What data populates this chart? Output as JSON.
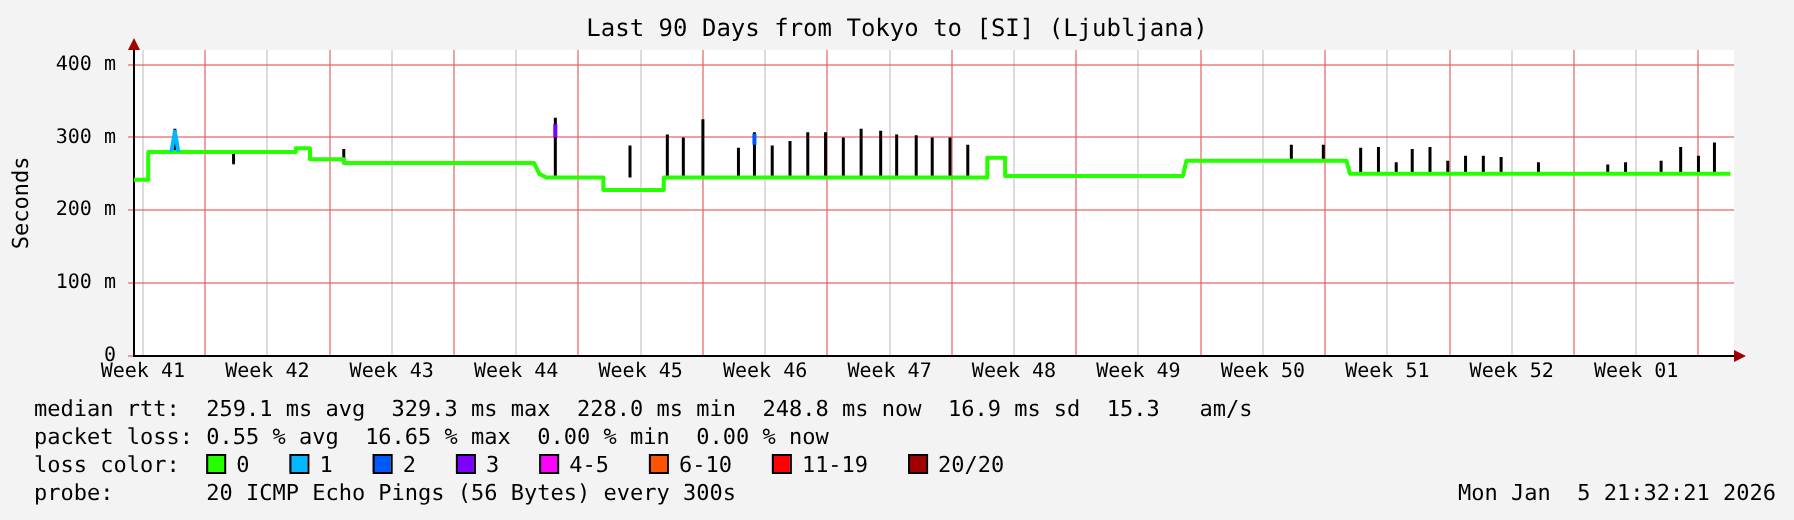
{
  "chart_data": {
    "type": "line",
    "title": "Last 90 Days from Tokyo to [SI] (Ljubljana)",
    "ylabel": "Seconds",
    "legend_title": "loss color:",
    "legend": "bottom",
    "grid": true,
    "xlim": [
      "2025-10-09",
      "2026-01-07"
    ],
    "xticks": [
      {
        "value": "2025-10-09T12:00",
        "label": "Week 41"
      },
      {
        "value": "2025-10-13",
        "label": null
      },
      {
        "value": "2025-10-16T12:00",
        "label": "Week 42"
      },
      {
        "value": "2025-10-20",
        "label": null
      },
      {
        "value": "2025-10-23T12:00",
        "label": "Week 43"
      },
      {
        "value": "2025-10-27",
        "label": null
      },
      {
        "value": "2025-10-30T12:00",
        "label": "Week 44"
      },
      {
        "value": "2025-11-03",
        "label": null
      },
      {
        "value": "2025-11-06T12:00",
        "label": "Week 45"
      },
      {
        "value": "2025-11-10",
        "label": null
      },
      {
        "value": "2025-11-13T12:00",
        "label": "Week 46"
      },
      {
        "value": "2025-11-17",
        "label": null
      },
      {
        "value": "2025-11-20T12:00",
        "label": "Week 47"
      },
      {
        "value": "2025-11-24",
        "label": null
      },
      {
        "value": "2025-11-27T12:00",
        "label": "Week 48"
      },
      {
        "value": "2025-12-01",
        "label": null
      },
      {
        "value": "2025-12-04T12:00",
        "label": "Week 49"
      },
      {
        "value": "2025-12-08",
        "label": null
      },
      {
        "value": "2025-12-11T12:00",
        "label": "Week 50"
      },
      {
        "value": "2025-12-15",
        "label": null
      },
      {
        "value": "2025-12-18T12:00",
        "label": "Week 51"
      },
      {
        "value": "2025-12-22",
        "label": null
      },
      {
        "value": "2025-12-25T12:00",
        "label": "Week 52"
      },
      {
        "value": "2025-12-29",
        "label": null
      },
      {
        "value": "2026-01-01T12:00",
        "label": "Week 01"
      },
      {
        "value": "2026-01-05",
        "label": null
      }
    ],
    "ylim": [
      0,
      420
    ],
    "yticks": [
      0,
      {
        "value": 100,
        "label": "100 m"
      },
      {
        "value": 200,
        "label": "200 m"
      },
      {
        "value": 300,
        "label": "300 m"
      },
      {
        "value": 400,
        "label": "400 m"
      }
    ],
    "series": [
      {
        "color": "#000000",
        "x": [
          "2025-10-11T07:12",
          "2025-10-11T07:12",
          null,
          "2025-10-14T14:24",
          "2025-10-14T14:24",
          null,
          "2025-10-20T19:12",
          "2025-10-20T19:12",
          null,
          "2025-11-01T16:48",
          "2025-11-01T16:48",
          null,
          "2025-11-05T21:36",
          "2025-11-05T21:36",
          null,
          "2025-11-08",
          "2025-11-08",
          null,
          "2025-11-08T21:36",
          "2025-11-08T21:36",
          null,
          "2025-11-10",
          "2025-11-10",
          null,
          "2025-11-12",
          "2025-11-12",
          null,
          "2025-11-12T21:36",
          "2025-11-12T21:36",
          null,
          "2025-11-13T21:36",
          "2025-11-13T21:36",
          null,
          "2025-11-14T21:36",
          "2025-11-14T21:36",
          null,
          "2025-11-15T21:36",
          "2025-11-15T21:36",
          null,
          "2025-11-16T21:36",
          "2025-11-16T21:36",
          null,
          "2025-11-17T21:36",
          "2025-11-17T21:36",
          null,
          "2025-11-18T21:36",
          "2025-11-18T21:36",
          null,
          "2025-11-20",
          "2025-11-20",
          null,
          "2025-11-20T21:36",
          "2025-11-20T21:36",
          null,
          "2025-11-22",
          "2025-11-22",
          null,
          "2025-11-22T21:36",
          "2025-11-22T21:36",
          null,
          "2025-11-23T21:36",
          "2025-11-23T21:36",
          null,
          "2025-11-24T21:36",
          "2025-11-24T21:36",
          null,
          "2025-12-13T02:24",
          "2025-12-13T02:24",
          null,
          "2025-12-14T21:36",
          "2025-12-14T21:36",
          null,
          "2025-12-17",
          "2025-12-17",
          null,
          "2025-12-18",
          "2025-12-18",
          null,
          "2025-12-19",
          "2025-12-19",
          null,
          "2025-12-19T21:36",
          "2025-12-19T21:36",
          null,
          "2025-12-20T21:36",
          "2025-12-20T21:36",
          null,
          "2025-12-21T21:36",
          "2025-12-21T21:36",
          null,
          "2025-12-22T21:36",
          "2025-12-22T21:36",
          null,
          "2025-12-23T21:36",
          "2025-12-23T21:36",
          null,
          "2025-12-24T21:36",
          "2025-12-24T21:36",
          null,
          "2025-12-27",
          "2025-12-27",
          null,
          "2025-12-30T21:36",
          "2025-12-30T21:36",
          null,
          "2025-12-31T21:36",
          "2025-12-31T21:36",
          null,
          "2026-01-02T21:36",
          "2026-01-02T21:36",
          null,
          "2026-01-04",
          "2026-01-04",
          null,
          "2026-01-05",
          "2026-01-05",
          null,
          "2026-01-05T21:36",
          "2026-01-05T21:36"
        ],
        "values": [
          280,
          312,
          null,
          280,
          265,
          null,
          265,
          284,
          null,
          245,
          327,
          null,
          245,
          289,
          null,
          245,
          304,
          null,
          245,
          300,
          null,
          245,
          325,
          null,
          245,
          286,
          null,
          245,
          307,
          null,
          245,
          289,
          null,
          245,
          295,
          null,
          245,
          307,
          null,
          245,
          307,
          null,
          245,
          300,
          null,
          245,
          312,
          null,
          245,
          309,
          null,
          245,
          304,
          null,
          245,
          303,
          null,
          245,
          300,
          null,
          245,
          300,
          null,
          245,
          290,
          null,
          268,
          290,
          null,
          268,
          290,
          null,
          250,
          286,
          null,
          250,
          287,
          null,
          250,
          266,
          null,
          250,
          284,
          null,
          250,
          287,
          null,
          250,
          268,
          null,
          250,
          275,
          null,
          250,
          275,
          null,
          250,
          273,
          null,
          250,
          266,
          null,
          250,
          263,
          null,
          250,
          266,
          null,
          250,
          268,
          null,
          250,
          287,
          null,
          250,
          275,
          null,
          250,
          293
        ]
      },
      {
        "name": "0",
        "color": "#26ff00",
        "x": [
          "2025-10-09",
          "2025-10-09T19:12",
          "2025-10-09T19:12",
          "2025-10-18T02:24",
          "2025-10-18T02:24",
          "2025-10-18T21:36",
          "2025-10-18T21:36",
          "2025-10-20T19:12",
          "2025-10-20T19:12",
          "2025-10-31T12:00",
          "2025-10-31T19:12",
          "2025-11-01T04:48",
          "2025-11-04T09:36",
          "2025-11-04T09:36",
          "2025-11-07T19:12",
          "2025-11-07T19:12",
          "2025-11-26",
          "2025-11-26",
          "2025-11-27",
          "2025-11-27",
          "2025-12-07",
          "2025-12-07T04:48",
          "2025-12-16T04:48",
          "2025-12-16T09:36",
          "2026-01-06T19:12"
        ],
        "values": [
          242,
          242,
          280,
          280,
          285,
          285,
          270,
          270,
          265,
          265,
          250,
          245,
          245,
          228,
          228,
          245,
          245,
          272,
          272,
          247,
          247,
          268,
          268,
          250,
          250
        ]
      },
      {
        "name": "1",
        "color": "#00b8ff",
        "x": [
          "2025-10-11T02:24",
          "2025-10-11T07:12",
          "2025-10-11T12:00"
        ],
        "values": [
          280,
          308,
          280
        ]
      },
      {
        "name": "2",
        "color": "#0059ff",
        "x": [
          "2025-11-12T21:36",
          "2025-11-12T21:36"
        ],
        "values": [
          290,
          305
        ]
      },
      {
        "name": "3",
        "color": "#7e00ff",
        "x": [
          "2025-11-01T16:48",
          "2025-11-01T16:48"
        ],
        "values": [
          300,
          318
        ]
      },
      {
        "name": "4-5",
        "color": "#ff00ff"
      },
      {
        "name": "6-10",
        "color": "#ff5500"
      },
      {
        "name": "11-19",
        "color": "#ff0000"
      },
      {
        "name": "20/20",
        "color": "#a10000"
      }
    ],
    "annotations": [
      "median rtt:  259.1 ms avg  329.3 ms max  228.0 ms min  248.8 ms now  16.9 ms sd  15.3   am/s",
      "packet loss: 0.55 % avg  16.65 % max  0.00 % min  0.00 % now",
      "probe:       20 ICMP Echo Pings (56 Bytes) every 300s",
      "Mon Jan  5 21:32:21 2026"
    ]
  }
}
